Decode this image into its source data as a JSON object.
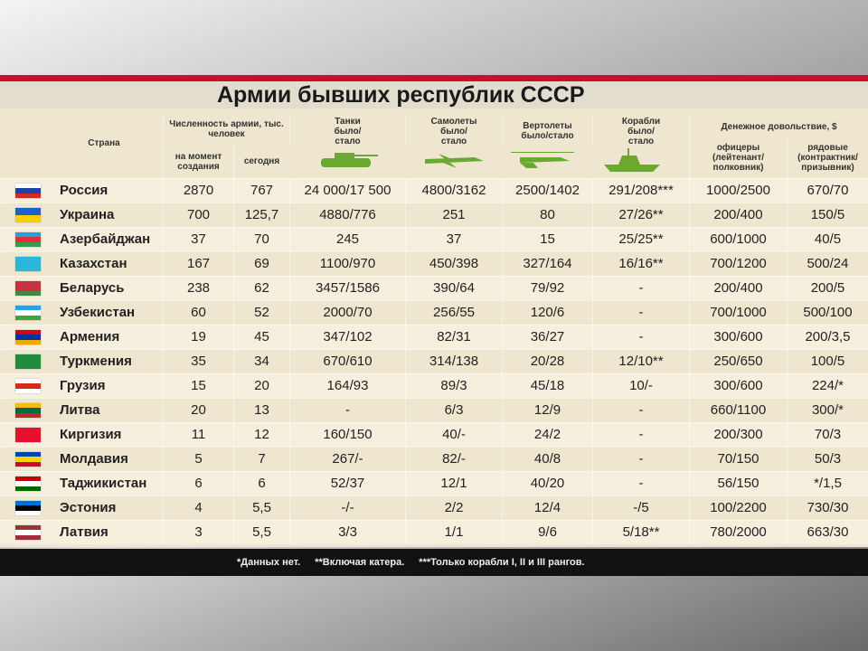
{
  "title": "Армии бывших республик СССР",
  "table": {
    "header": {
      "country": "Страна",
      "army": "Численность армии, тыс. человек",
      "army_start": "на момент создания",
      "army_now": "сегодня",
      "tanks": "Танки было/стало",
      "planes": "Самолеты было/стало",
      "helicopters": "Вертолеты было/стало",
      "ships": "Корабли было/стало",
      "pay": "Денежное довольствие, $",
      "officers": "офицеры (лейтенант/ полковник)",
      "soldiers": "рядовые (контрактник/ призывник)"
    },
    "rows": [
      [
        "Россия",
        "2870",
        "767",
        "24 000/17 500",
        "4800/3162",
        "2500/1402",
        "291/208***",
        "1000/2500",
        "670/70"
      ],
      [
        "Украина",
        "700",
        "125,7",
        "4880/776",
        "251",
        "80",
        "27/26**",
        "200/400",
        "150/5"
      ],
      [
        "Азербайджан",
        "37",
        "70",
        "245",
        "37",
        "15",
        "25/25**",
        "600/1000",
        "40/5"
      ],
      [
        "Казахстан",
        "167",
        "69",
        "1100/970",
        "450/398",
        "327/164",
        "16/16**",
        "700/1200",
        "500/24"
      ],
      [
        "Беларусь",
        "238",
        "62",
        "3457/1586",
        "390/64",
        "79/92",
        "-",
        "200/400",
        "200/5"
      ],
      [
        "Узбекистан",
        "60",
        "52",
        "2000/70",
        "256/55",
        "120/6",
        "-",
        "700/1000",
        "500/100"
      ],
      [
        "Армения",
        "19",
        "45",
        "347/102",
        "82/31",
        "36/27",
        "-",
        "300/600",
        "200/3,5"
      ],
      [
        "Туркмения",
        "35",
        "34",
        "670/610",
        "314/138",
        "20/28",
        "12/10**",
        "250/650",
        "100/5"
      ],
      [
        "Грузия",
        "15",
        "20",
        "164/93",
        "89/3",
        "45/18",
        "10/-",
        "300/600",
        "224/*"
      ],
      [
        "Литва",
        "20",
        "13",
        "-",
        "6/3",
        "12/9",
        "-",
        "660/1100",
        "300/*"
      ],
      [
        "Киргизия",
        "11",
        "12",
        "160/150",
        "40/-",
        "24/2",
        "-",
        "200/300",
        "70/3"
      ],
      [
        "Молдавия",
        "5",
        "7",
        "267/-",
        "82/-",
        "40/8",
        "-",
        "70/150",
        "50/3"
      ],
      [
        "Таджикистан",
        "6",
        "6",
        "52/37",
        "12/1",
        "40/20",
        "-",
        "56/150",
        "*/1,5"
      ],
      [
        "Эстония",
        "4",
        "5,5",
        "-/-",
        "2/2",
        "12/4",
        "-/5",
        "100/2200",
        "730/30"
      ],
      [
        "Латвия",
        "3",
        "5,5",
        "3/3",
        "1/1",
        "9/6",
        "5/18**",
        "780/2000",
        "663/30"
      ]
    ]
  },
  "footer": [
    "*Данных нет.",
    "**Включая катера.",
    "***Только корабли I, II и III рангов."
  ]
}
